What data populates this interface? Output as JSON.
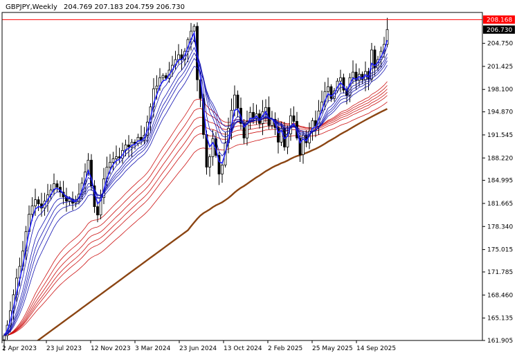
{
  "header": {
    "symbol_tf": "GBPJPY,Weekly",
    "ohlc": "204.769 207.183 204.759 206.730"
  },
  "colors": {
    "background": "#ffffff",
    "axis": "#000000",
    "candle": "#000000",
    "ma_fast": "#1010b0",
    "ma_fast_lead": "#2020ff",
    "ma_slow": "#cc1010",
    "ma_long": "#8b4513",
    "ask_line": "#ff0000",
    "ask_tag": "#ff0000",
    "bid_tag": "#000000"
  },
  "chart_data": {
    "type": "candlestick",
    "timeframe": "Weekly",
    "ylim": [
      161.905,
      209.2
    ],
    "y_ticks": [
      "208.168",
      "206.730",
      "204.750",
      "201.425",
      "198.100",
      "194.870",
      "191.545",
      "188.220",
      "184.995",
      "181.665",
      "178.340",
      "175.015",
      "171.785",
      "168.460",
      "165.135",
      "161.905"
    ],
    "x_ticks": [
      "2 Apr 2023",
      "23 Jul 2023",
      "12 Nov 2023",
      "3 Mar 2024",
      "23 Jun 2024",
      "13 Oct 2024",
      "2 Feb 2025",
      "25 May 2025",
      "14 Sep 2025"
    ],
    "ask_price": 208.168,
    "bid_price": 206.73,
    "close_series": [
      162.6,
      164.1,
      166.2,
      168.5,
      170.9,
      172.6,
      174.8,
      177.6,
      180.1,
      181.3,
      182.2,
      181.6,
      181.0,
      182.0,
      182.9,
      183.6,
      184.5,
      184.0,
      183.3,
      182.6,
      182.0,
      182.3,
      181.7,
      181.9,
      183.0,
      184.6,
      186.2,
      187.9,
      184.2,
      181.2,
      180.0,
      182.5,
      185.2,
      186.9,
      187.6,
      188.1,
      188.4,
      188.2,
      189.3,
      190.1,
      189.8,
      190.5,
      190.3,
      191.2,
      190.7,
      191.5,
      193.4,
      195.6,
      198.2,
      198.6,
      199.8,
      200.1,
      199.7,
      200.9,
      201.6,
      202.4,
      203.1,
      202.4,
      203.6,
      205.3,
      206.5,
      207.2,
      199.5,
      196.8,
      191.6,
      186.9,
      188.4,
      191.0,
      188.6,
      185.9,
      187.2,
      190.4,
      192.5,
      195.1,
      197.3,
      195.4,
      193.2,
      191.1,
      193.5,
      194.8,
      193.9,
      194.6,
      193.2,
      194.9,
      195.5,
      192.9,
      193.8,
      192.6,
      190.5,
      192.5,
      189.8,
      191.7,
      194.3,
      193.5,
      191.1,
      188.7,
      191.5,
      190.4,
      192.1,
      193.6,
      192.8,
      195.0,
      196.3,
      197.8,
      198.5,
      196.8,
      197.9,
      199.3,
      199.8,
      198.0,
      197.2,
      199.8,
      200.6,
      199.4,
      200.3,
      199.5,
      200.7,
      199.6,
      203.8,
      201.2,
      202.4,
      203.6,
      204.6,
      206.73
    ],
    "series": [
      {
        "name": "",
        "type": "ma_fast",
        "periods": [
          3,
          5,
          8,
          10,
          12,
          15
        ]
      },
      {
        "name": "",
        "type": "ma_slow",
        "periods": [
          30,
          35,
          40,
          45,
          50,
          60
        ]
      },
      {
        "name": "",
        "type": "ma_long",
        "periods": [
          200
        ]
      }
    ]
  }
}
